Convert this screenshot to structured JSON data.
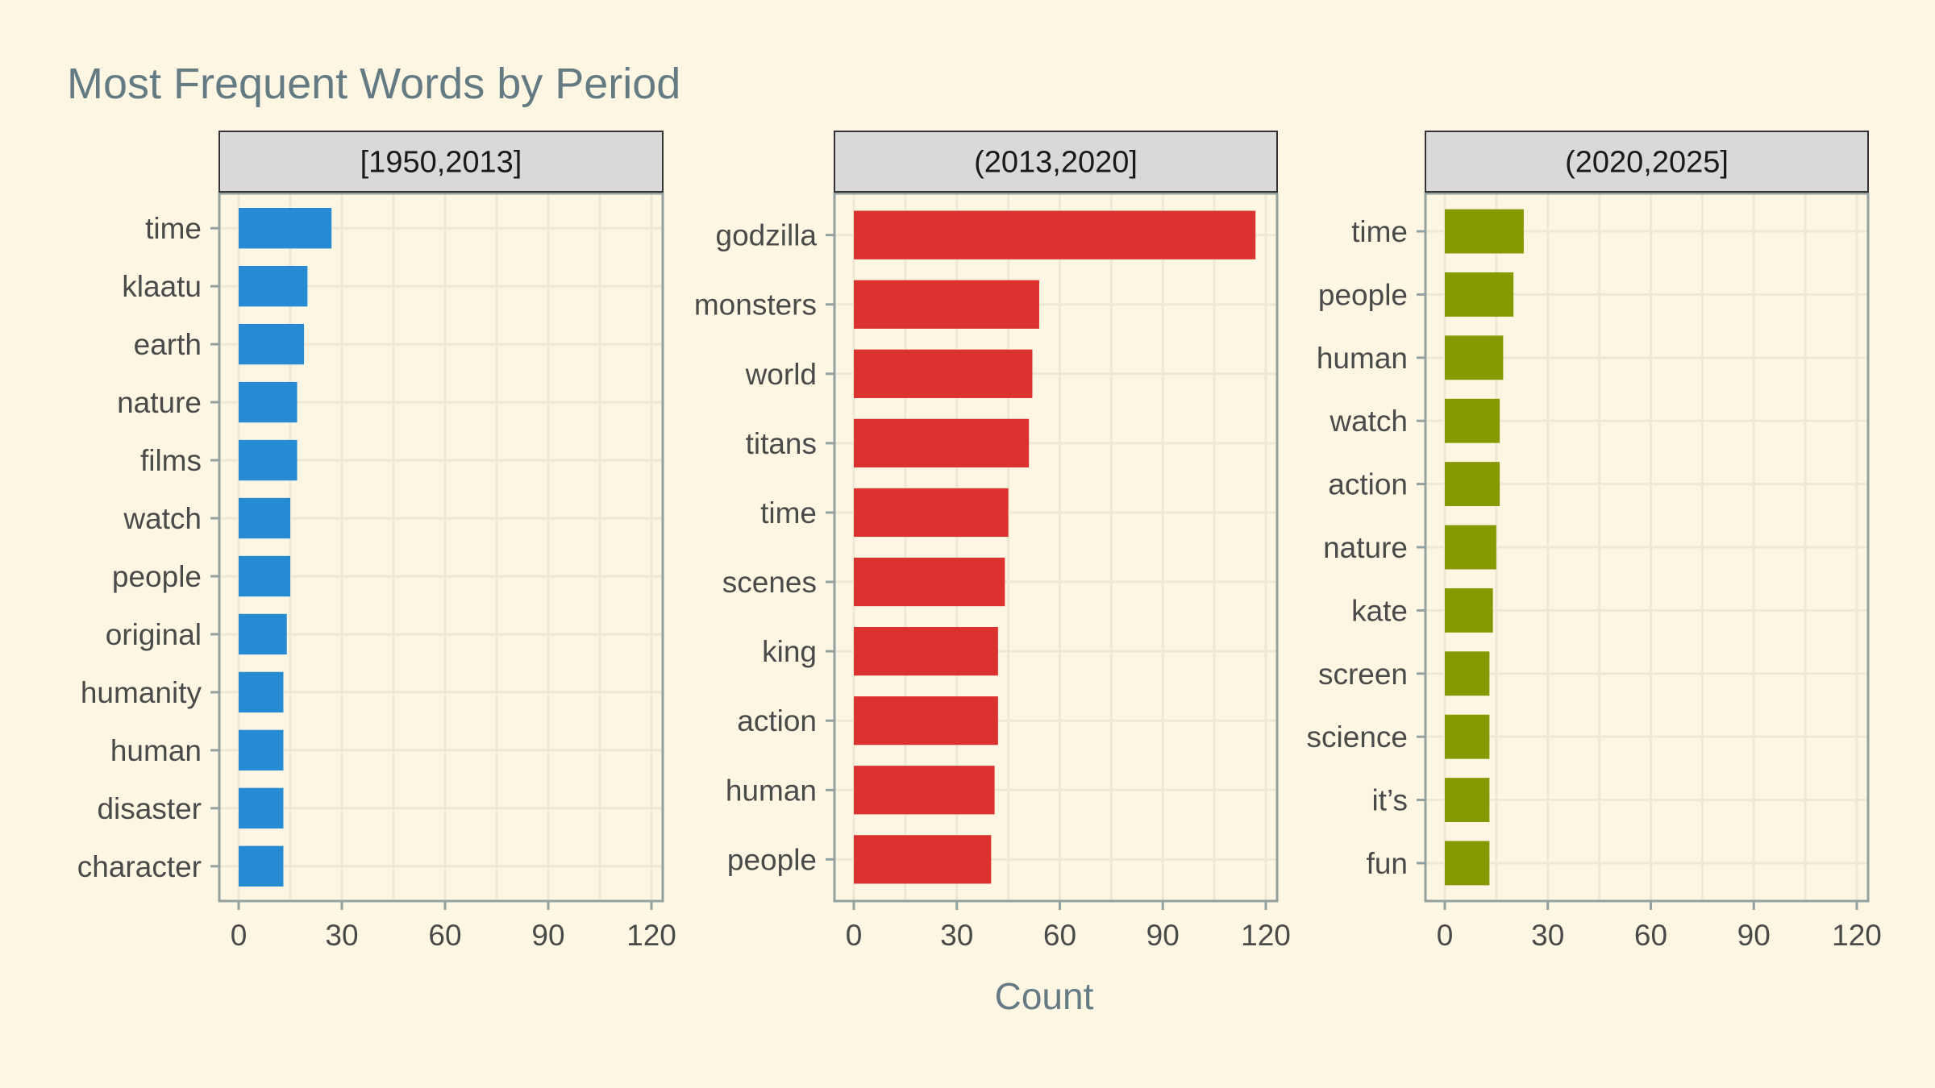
{
  "chart_data": {
    "type": "bar",
    "orientation": "horizontal",
    "title": "Most Frequent Words by Period",
    "xlabel": "Count",
    "ylabel": "",
    "xlim": [
      0,
      120
    ],
    "xticks": [
      0,
      30,
      60,
      90,
      120
    ],
    "grid": true,
    "legend": "none",
    "panels": [
      {
        "label": "[1950,2013]",
        "color": "#268bd2",
        "categories": [
          "time",
          "klaatu",
          "earth",
          "nature",
          "films",
          "watch",
          "people",
          "original",
          "humanity",
          "human",
          "disaster",
          "character"
        ],
        "values": [
          27,
          20,
          19,
          17,
          17,
          15,
          15,
          14,
          13,
          13,
          13,
          13
        ]
      },
      {
        "label": "(2013,2020]",
        "color": "#dc322f",
        "categories": [
          "godzilla",
          "monsters",
          "world",
          "titans",
          "time",
          "scenes",
          "king",
          "action",
          "human",
          "people"
        ],
        "values": [
          117,
          54,
          52,
          51,
          45,
          44,
          42,
          42,
          41,
          40
        ]
      },
      {
        "label": "(2020,2025]",
        "color": "#859900",
        "categories": [
          "time",
          "people",
          "human",
          "watch",
          "action",
          "nature",
          "kate",
          "screen",
          "science",
          "it’s",
          "fun"
        ],
        "values": [
          23,
          20,
          17,
          16,
          16,
          15,
          14,
          13,
          13,
          13,
          13
        ]
      }
    ]
  },
  "colors": {
    "background": "#fdf6e3",
    "title": "#657b83",
    "text": "#4a4a4a",
    "panel_border": "#93a1a1",
    "grid": "#eee8d5",
    "strip_fill": "#d9d9d9",
    "strip_border": "#333333"
  }
}
